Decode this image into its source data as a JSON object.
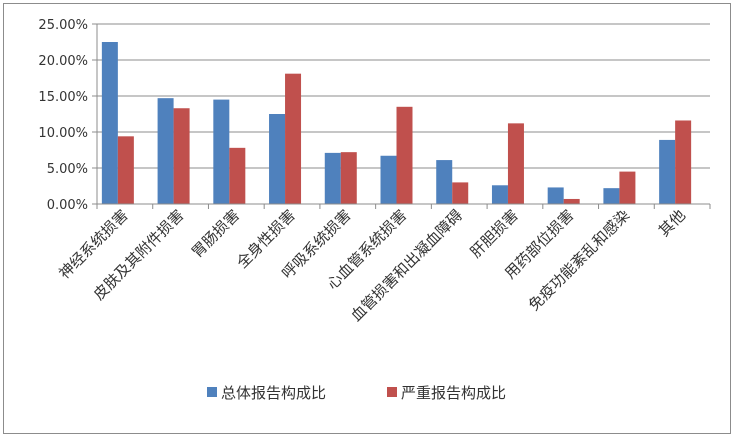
{
  "chart_data": {
    "type": "bar",
    "title": "",
    "xlabel": "",
    "ylabel": "",
    "ylim": [
      0,
      25
    ],
    "yticks": [
      "0.00%",
      "5.00%",
      "10.00%",
      "15.00%",
      "20.00%",
      "25.00%"
    ],
    "grid": true,
    "legend_position": "bottom",
    "categories": [
      "神经系统损害",
      "皮肤及其附件损害",
      "胃肠损害",
      "全身性损害",
      "呼吸系统损害",
      "心血管系统损害",
      "血管损害和出凝血障碍",
      "肝胆损害",
      "用药部位损害",
      "免疫功能紊乱和感染",
      "其他"
    ],
    "series": [
      {
        "name": "总体报告构成比",
        "color": "#4f81bd",
        "values": [
          22.5,
          14.7,
          14.5,
          12.5,
          7.1,
          6.7,
          6.1,
          2.6,
          2.3,
          2.2,
          8.9
        ]
      },
      {
        "name": "严重报告构成比",
        "color": "#c0504d",
        "values": [
          9.4,
          13.3,
          7.8,
          18.1,
          7.2,
          13.5,
          3.0,
          11.2,
          0.7,
          4.5,
          11.6
        ]
      }
    ]
  }
}
